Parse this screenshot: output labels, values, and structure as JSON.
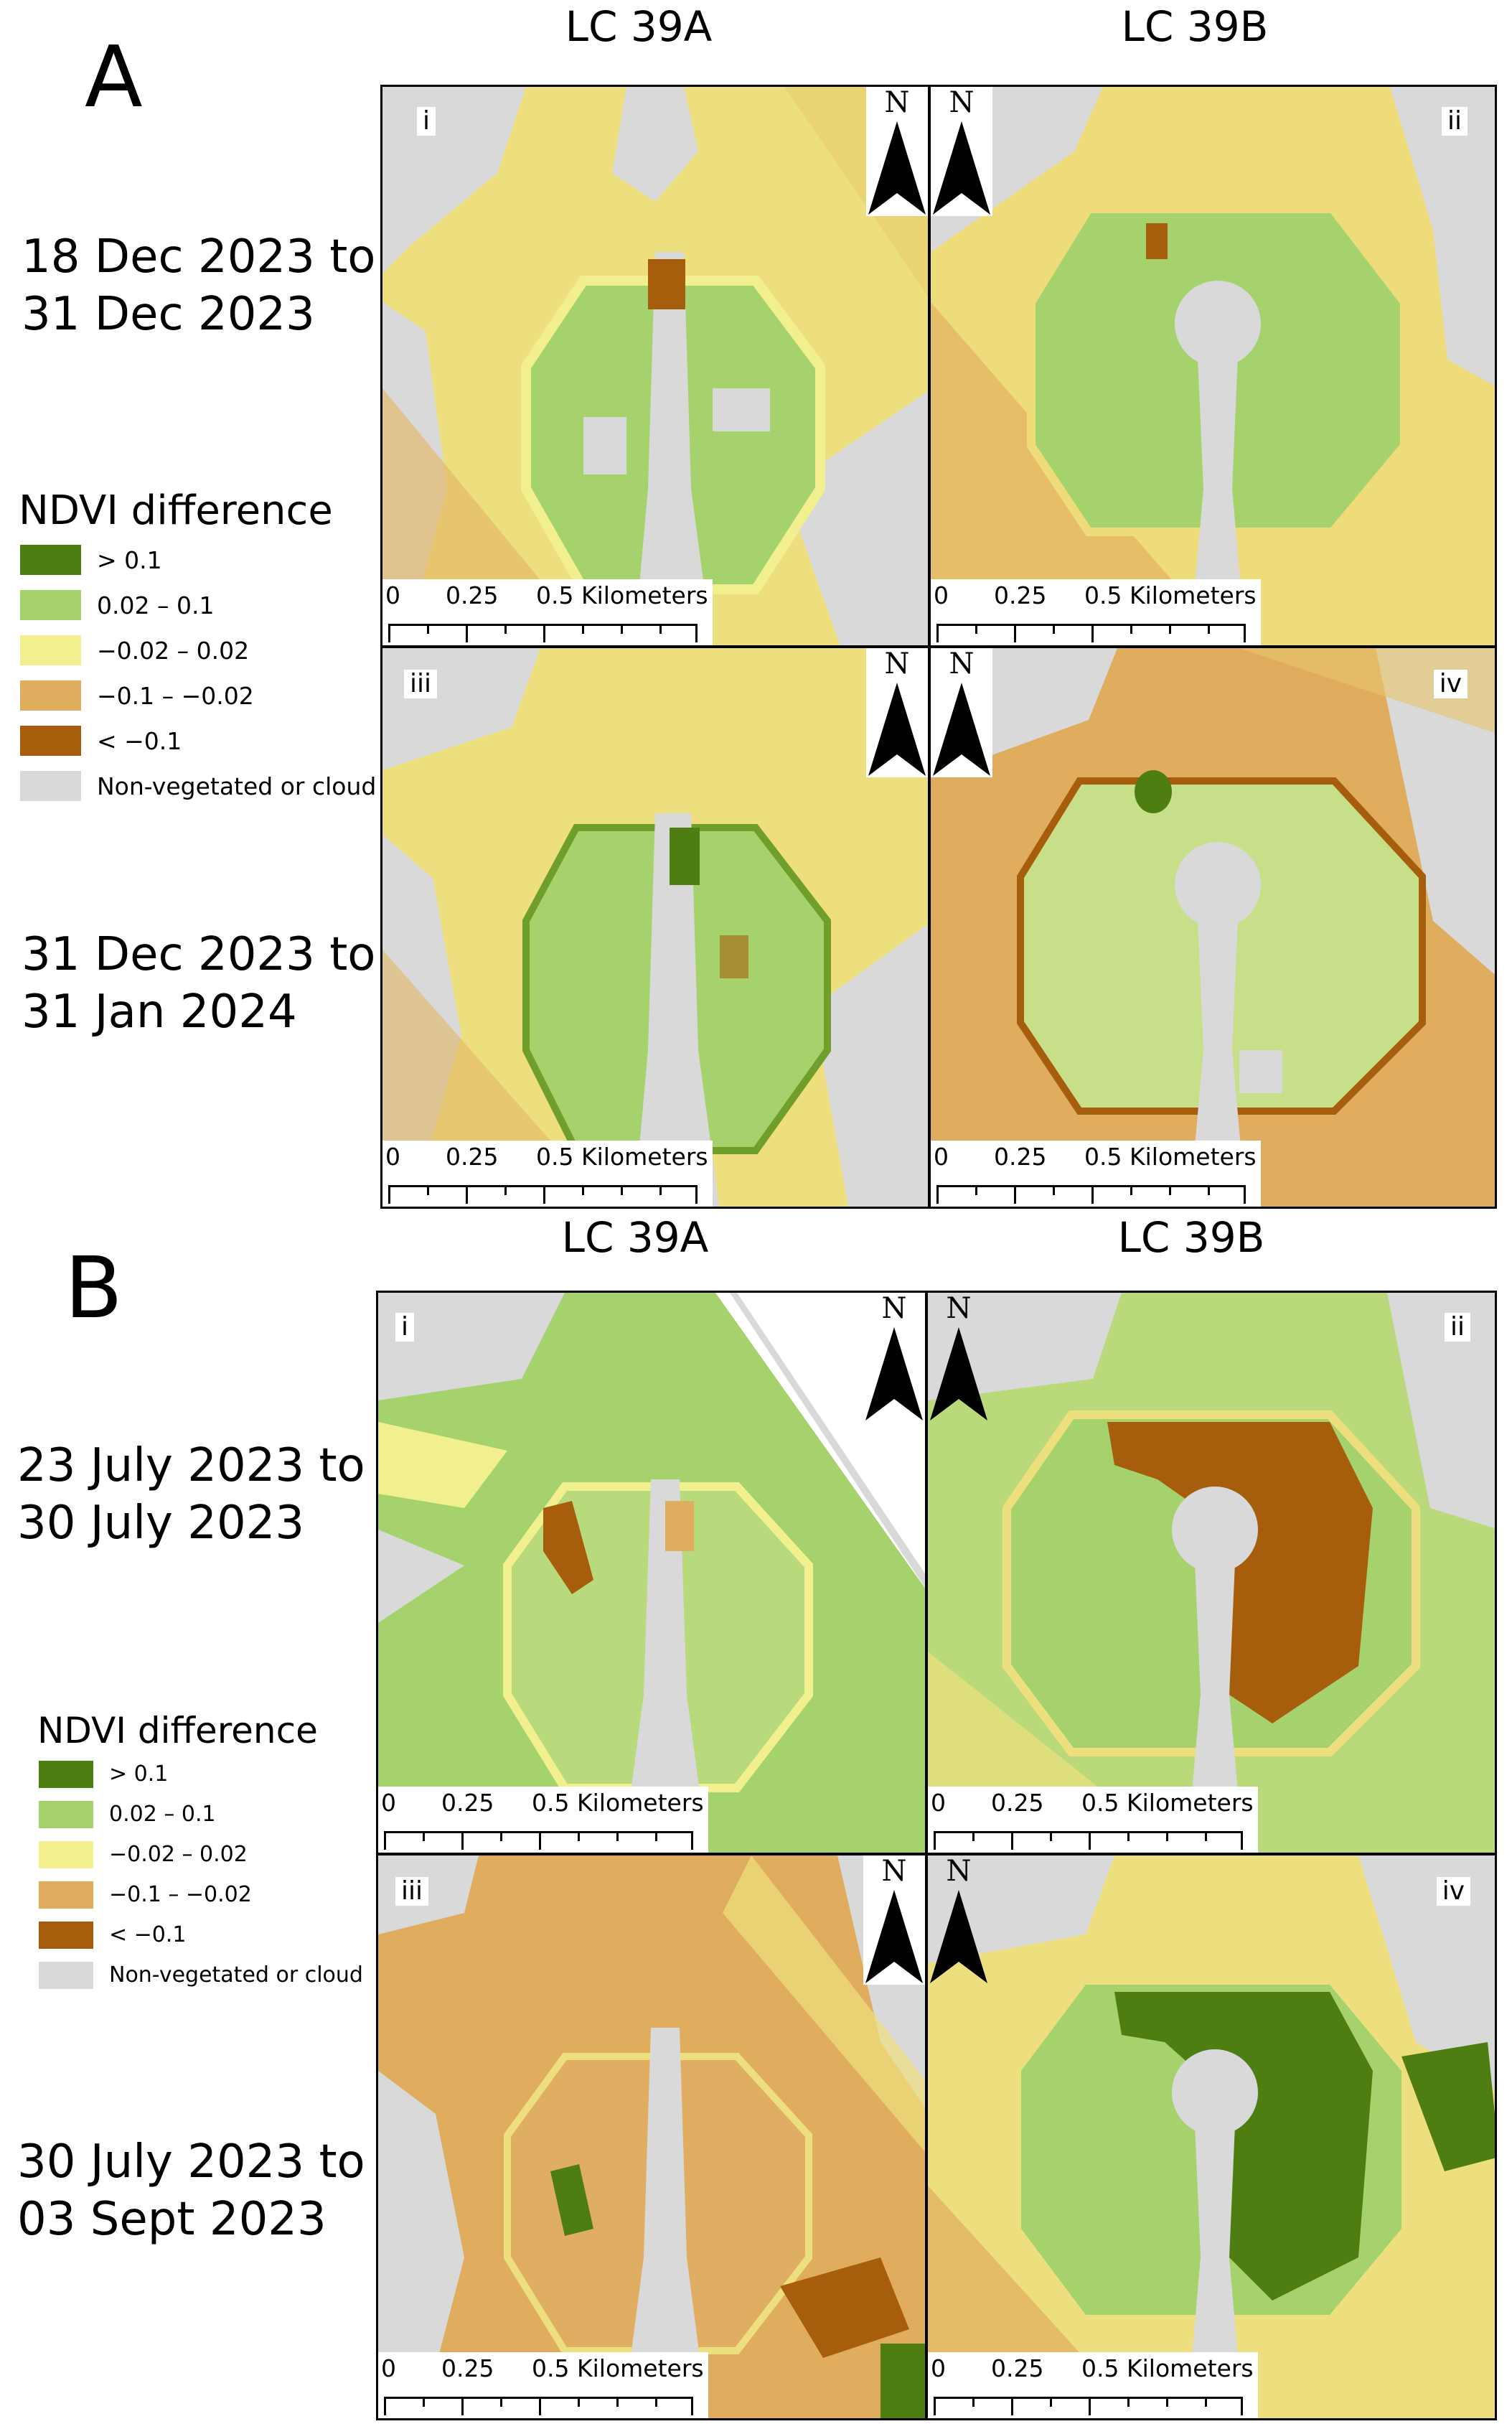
{
  "colors": {
    "gt_01": "#4e7d12",
    "c002_01": "#a6d26e",
    "cm002_002": "#f2ef8e",
    "cm01_m002": "#e0ad5e",
    "lt_m01": "#a65e0c",
    "nonveg": "#d9d9d9"
  },
  "panel_a": {
    "letter": "A",
    "col_left": "LC 39A",
    "col_right": "LC 39B",
    "row1_dates": "18 Dec 2023 to\n31 Dec 2023",
    "row2_dates": "31 Dec 2023 to\n31 Jan 2024",
    "legend": {
      "title": "NDVI difference",
      "items": [
        {
          "label": "> 0.1",
          "color": "#4e7d12"
        },
        {
          "label": "0.02 – 0.1",
          "color": "#a6d26e"
        },
        {
          "label": "−0.02 – 0.02",
          "color": "#f2ef8e"
        },
        {
          "label": "−0.1 – −0.02",
          "color": "#e0ad5e"
        },
        {
          "label": "< −0.1",
          "color": "#a65e0c"
        },
        {
          "label": "Non-vegetated or cloud",
          "color": "#d9d9d9"
        }
      ]
    },
    "maps": [
      {
        "roman": "i"
      },
      {
        "roman": "ii"
      },
      {
        "roman": "iii"
      },
      {
        "roman": "iv"
      }
    ]
  },
  "panel_b": {
    "letter": "B",
    "col_left": "LC 39A",
    "col_right": "LC 39B",
    "row1_dates": "23 July 2023 to\n30 July 2023",
    "row2_dates": "30 July 2023 to\n03 Sept 2023",
    "legend": {
      "title": "NDVI difference",
      "items": [
        {
          "label": "> 0.1",
          "color": "#4e7d12"
        },
        {
          "label": "0.02 – 0.1",
          "color": "#a6d26e"
        },
        {
          "label": "−0.02 – 0.02",
          "color": "#f2ef8e"
        },
        {
          "label": "−0.1 – −0.02",
          "color": "#e0ad5e"
        },
        {
          "label": "< −0.1",
          "color": "#a65e0c"
        },
        {
          "label": "Non-vegetated or cloud",
          "color": "#d9d9d9"
        }
      ]
    },
    "maps": [
      {
        "roman": "i"
      },
      {
        "roman": "ii"
      },
      {
        "roman": "iii"
      },
      {
        "roman": "iv"
      }
    ]
  },
  "north_label": "N",
  "scale": {
    "t0": "0",
    "t1": "0.25",
    "t2": "0.5 Kilometers"
  }
}
